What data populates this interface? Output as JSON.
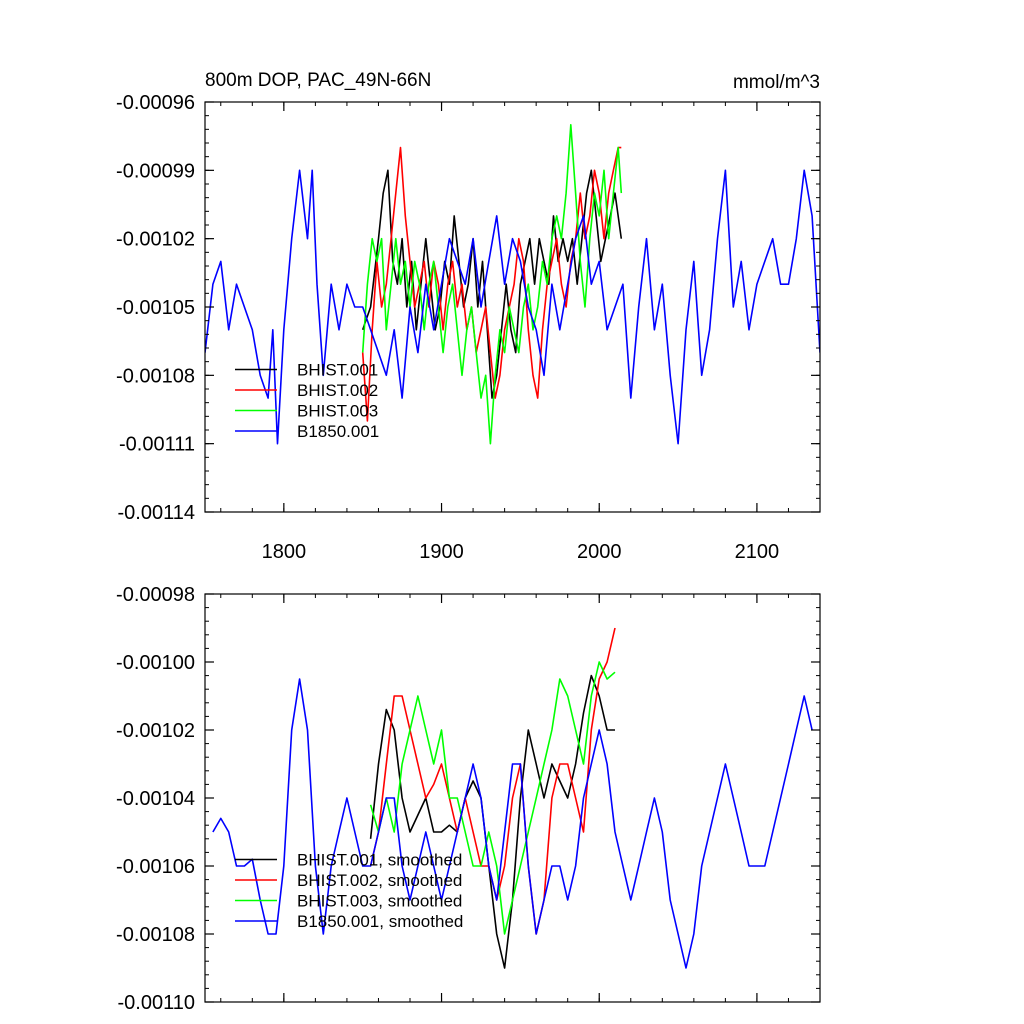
{
  "chart_data": [
    {
      "type": "line",
      "title": "800m DOP, PAC_49N-66N",
      "units": "mmol/m^3",
      "xlabel": "",
      "ylabel": "",
      "xlim": [
        1750,
        2140
      ],
      "ylim": [
        -0.00114,
        -0.00096
      ],
      "x_ticks": [
        1800,
        1900,
        2000,
        2100
      ],
      "x_tick_labels": [
        "1800",
        "1900",
        "2000",
        "2100"
      ],
      "y_ticks": [
        -0.00096,
        -0.00099,
        -0.00102,
        -0.00105,
        -0.00108,
        -0.00111,
        -0.00114
      ],
      "y_tick_labels": [
        "-0.00096",
        "-0.00099",
        "-0.00102",
        "-0.00105",
        "-0.00108",
        "-0.00111",
        "-0.00114"
      ],
      "grid": false,
      "legend_position": "bottom-left",
      "series": [
        {
          "name": "BHIST.001",
          "color": "#000000",
          "x": [
            1850,
            1855,
            1860,
            1863,
            1866,
            1869,
            1872,
            1875,
            1878,
            1881,
            1884,
            1887,
            1890,
            1893,
            1896,
            1899,
            1902,
            1905,
            1908,
            1911,
            1914,
            1917,
            1920,
            1923,
            1926,
            1929,
            1932,
            1935,
            1938,
            1941,
            1944,
            1947,
            1950,
            1953,
            1956,
            1959,
            1962,
            1965,
            1968,
            1971,
            1974,
            1977,
            1980,
            1983,
            1986,
            1989,
            1992,
            1995,
            1998,
            2001,
            2004,
            2007,
            2010,
            2014
          ],
          "values": [
            -0.00106,
            -0.00105,
            -0.00102,
            -0.001,
            -0.00099,
            -0.00103,
            -0.00104,
            -0.00102,
            -0.00105,
            -0.00103,
            -0.00106,
            -0.00104,
            -0.00102,
            -0.00104,
            -0.00106,
            -0.00105,
            -0.00103,
            -0.00104,
            -0.00101,
            -0.00103,
            -0.00105,
            -0.00104,
            -0.00102,
            -0.00105,
            -0.00103,
            -0.00106,
            -0.00109,
            -0.00108,
            -0.00106,
            -0.00104,
            -0.00106,
            -0.00107,
            -0.00104,
            -0.00103,
            -0.00102,
            -0.00104,
            -0.00102,
            -0.00103,
            -0.00104,
            -0.00101,
            -0.00103,
            -0.00102,
            -0.00103,
            -0.00102,
            -0.00104,
            -0.00102,
            -0.001,
            -0.00099,
            -0.00101,
            -0.00103,
            -0.00102,
            -0.00101,
            -0.001,
            -0.00102
          ]
        },
        {
          "name": "BHIST.002",
          "color": "#ff0000",
          "x": [
            1850,
            1853,
            1856,
            1859,
            1862,
            1865,
            1868,
            1871,
            1874,
            1877,
            1880,
            1883,
            1886,
            1889,
            1892,
            1895,
            1898,
            1901,
            1904,
            1907,
            1910,
            1913,
            1916,
            1919,
            1922,
            1925,
            1928,
            1931,
            1934,
            1937,
            1940,
            1943,
            1946,
            1949,
            1952,
            1955,
            1958,
            1961,
            1964,
            1967,
            1970,
            1973,
            1976,
            1979,
            1982,
            1985,
            1988,
            1991,
            1994,
            1997,
            2000,
            2003,
            2006,
            2009,
            2012,
            2014
          ],
          "values": [
            -0.00107,
            -0.0011,
            -0.00106,
            -0.00103,
            -0.00105,
            -0.00104,
            -0.00102,
            -0.001,
            -0.00098,
            -0.00101,
            -0.00103,
            -0.00105,
            -0.00104,
            -0.00103,
            -0.00105,
            -0.00103,
            -0.00104,
            -0.00106,
            -0.00104,
            -0.00103,
            -0.00105,
            -0.00104,
            -0.00106,
            -0.00105,
            -0.00107,
            -0.00106,
            -0.00105,
            -0.00107,
            -0.00109,
            -0.00108,
            -0.00106,
            -0.00105,
            -0.00104,
            -0.00102,
            -0.00103,
            -0.00106,
            -0.00108,
            -0.00109,
            -0.00106,
            -0.00104,
            -0.00103,
            -0.00102,
            -0.00104,
            -0.00105,
            -0.00103,
            -0.00102,
            -0.001,
            -0.00102,
            -0.00101,
            -0.00099,
            -0.001,
            -0.00102,
            -0.001,
            -0.00099,
            -0.00098,
            -0.00098
          ]
        },
        {
          "name": "BHIST.003",
          "color": "#00ff00",
          "x": [
            1850,
            1853,
            1856,
            1859,
            1862,
            1865,
            1868,
            1871,
            1874,
            1877,
            1880,
            1883,
            1886,
            1889,
            1892,
            1895,
            1898,
            1901,
            1904,
            1907,
            1910,
            1913,
            1916,
            1919,
            1922,
            1925,
            1928,
            1931,
            1934,
            1937,
            1940,
            1943,
            1946,
            1949,
            1952,
            1955,
            1958,
            1961,
            1964,
            1967,
            1970,
            1973,
            1976,
            1979,
            1982,
            1985,
            1988,
            1991,
            1994,
            1997,
            2000,
            2003,
            2006,
            2009,
            2012,
            2014
          ],
          "values": [
            -0.00107,
            -0.00104,
            -0.00102,
            -0.00103,
            -0.00102,
            -0.00106,
            -0.00104,
            -0.00102,
            -0.00104,
            -0.00103,
            -0.00105,
            -0.00103,
            -0.00104,
            -0.00106,
            -0.00104,
            -0.00103,
            -0.00105,
            -0.00107,
            -0.00105,
            -0.00104,
            -0.00106,
            -0.00108,
            -0.00106,
            -0.00105,
            -0.00107,
            -0.00109,
            -0.00108,
            -0.00111,
            -0.00108,
            -0.00106,
            -0.00107,
            -0.00105,
            -0.00106,
            -0.00107,
            -0.00105,
            -0.00104,
            -0.00106,
            -0.00105,
            -0.00103,
            -0.00104,
            -0.00102,
            -0.00101,
            -0.00102,
            -0.001,
            -0.00097,
            -0.001,
            -0.00103,
            -0.00105,
            -0.00102,
            -0.001,
            -0.00101,
            -0.00099,
            -0.00102,
            -0.001,
            -0.00098,
            -0.001
          ]
        },
        {
          "name": "B1850.001",
          "color": "#0000ff",
          "x": [
            1750,
            1755,
            1760,
            1765,
            1770,
            1775,
            1780,
            1785,
            1790,
            1793,
            1796,
            1800,
            1805,
            1810,
            1815,
            1818,
            1821,
            1825,
            1830,
            1835,
            1840,
            1845,
            1850,
            1855,
            1860,
            1865,
            1870,
            1875,
            1880,
            1885,
            1890,
            1895,
            1900,
            1905,
            1910,
            1915,
            1920,
            1925,
            1930,
            1935,
            1940,
            1945,
            1950,
            1955,
            1960,
            1965,
            1970,
            1975,
            1980,
            1985,
            1990,
            1995,
            2000,
            2005,
            2010,
            2015,
            2020,
            2025,
            2030,
            2035,
            2040,
            2045,
            2050,
            2055,
            2060,
            2065,
            2070,
            2075,
            2080,
            2085,
            2090,
            2095,
            2100,
            2105,
            2110,
            2115,
            2120,
            2125,
            2130,
            2135,
            2140
          ],
          "values": [
            -0.00107,
            -0.00104,
            -0.00103,
            -0.00106,
            -0.00104,
            -0.00105,
            -0.00106,
            -0.00108,
            -0.00109,
            -0.00106,
            -0.00111,
            -0.00106,
            -0.00102,
            -0.00099,
            -0.00102,
            -0.00099,
            -0.00104,
            -0.00108,
            -0.00104,
            -0.00106,
            -0.00104,
            -0.00105,
            -0.00105,
            -0.00106,
            -0.00107,
            -0.00108,
            -0.00106,
            -0.00109,
            -0.00105,
            -0.00107,
            -0.00104,
            -0.00106,
            -0.00104,
            -0.00102,
            -0.00103,
            -0.00104,
            -0.00102,
            -0.00105,
            -0.00103,
            -0.00101,
            -0.00104,
            -0.00102,
            -0.00103,
            -0.00105,
            -0.00106,
            -0.00108,
            -0.00104,
            -0.00106,
            -0.00104,
            -0.00102,
            -0.00101,
            -0.00104,
            -0.00103,
            -0.00106,
            -0.00105,
            -0.00104,
            -0.00109,
            -0.00105,
            -0.00102,
            -0.00106,
            -0.00104,
            -0.00108,
            -0.00111,
            -0.00106,
            -0.00103,
            -0.00108,
            -0.00106,
            -0.00102,
            -0.00099,
            -0.00105,
            -0.00103,
            -0.00106,
            -0.00104,
            -0.00103,
            -0.00102,
            -0.00104,
            -0.00104,
            -0.00102,
            -0.00099,
            -0.00101,
            -0.00107
          ]
        }
      ]
    },
    {
      "type": "line",
      "title": "",
      "xlabel": "",
      "ylabel": "",
      "xlim": [
        1750,
        2140
      ],
      "ylim": [
        -0.0011,
        -0.00098
      ],
      "x_ticks": [
        1800,
        1900,
        2000,
        2100
      ],
      "x_tick_labels": [],
      "y_ticks": [
        -0.00098,
        -0.001,
        -0.00102,
        -0.00104,
        -0.00106,
        -0.00108,
        -0.0011
      ],
      "y_tick_labels": [
        "-0.00098",
        "-0.00100",
        "-0.00102",
        "-0.00104",
        "-0.00106",
        "-0.00108",
        "-0.00110"
      ],
      "grid": false,
      "legend_position": "bottom-left",
      "series": [
        {
          "name": "BHIST.001, smoothed",
          "color": "#000000",
          "x": [
            1855,
            1860,
            1865,
            1870,
            1875,
            1880,
            1885,
            1890,
            1895,
            1900,
            1905,
            1910,
            1915,
            1920,
            1925,
            1930,
            1935,
            1940,
            1945,
            1950,
            1955,
            1960,
            1965,
            1970,
            1975,
            1980,
            1985,
            1990,
            1995,
            2000,
            2005,
            2010
          ],
          "values": [
            -0.001052,
            -0.00103,
            -0.001014,
            -0.00102,
            -0.00104,
            -0.00105,
            -0.001045,
            -0.00104,
            -0.00105,
            -0.00105,
            -0.001048,
            -0.00105,
            -0.00104,
            -0.001035,
            -0.00104,
            -0.00106,
            -0.00108,
            -0.00109,
            -0.00107,
            -0.00104,
            -0.00102,
            -0.00103,
            -0.00104,
            -0.00103,
            -0.001035,
            -0.00104,
            -0.00103,
            -0.001015,
            -0.001004,
            -0.00101,
            -0.00102,
            -0.00102
          ]
        },
        {
          "name": "BHIST.002, smoothed",
          "color": "#ff0000",
          "x": [
            1855,
            1860,
            1865,
            1870,
            1875,
            1880,
            1885,
            1890,
            1895,
            1900,
            1905,
            1910,
            1915,
            1920,
            1925,
            1930,
            1935,
            1940,
            1945,
            1950,
            1955,
            1960,
            1965,
            1970,
            1975,
            1980,
            1985,
            1990,
            1995,
            2000,
            2005,
            2010
          ],
          "values": [
            -0.00106,
            -0.00105,
            -0.00103,
            -0.00101,
            -0.00101,
            -0.00102,
            -0.00103,
            -0.00104,
            -0.001036,
            -0.00103,
            -0.00104,
            -0.00105,
            -0.00104,
            -0.00105,
            -0.00106,
            -0.00106,
            -0.00107,
            -0.00106,
            -0.00104,
            -0.00103,
            -0.00106,
            -0.00108,
            -0.00107,
            -0.00104,
            -0.00103,
            -0.00103,
            -0.00104,
            -0.00105,
            -0.00102,
            -0.001005,
            -0.001,
            -0.00099
          ]
        },
        {
          "name": "BHIST.003, smoothed",
          "color": "#00ff00",
          "x": [
            1855,
            1860,
            1865,
            1870,
            1875,
            1880,
            1885,
            1890,
            1895,
            1900,
            1905,
            1910,
            1915,
            1920,
            1925,
            1930,
            1935,
            1940,
            1945,
            1950,
            1955,
            1960,
            1965,
            1970,
            1975,
            1980,
            1985,
            1990,
            1995,
            2000,
            2005,
            2010
          ],
          "values": [
            -0.001042,
            -0.00105,
            -0.00104,
            -0.00105,
            -0.00103,
            -0.00102,
            -0.00101,
            -0.00102,
            -0.00103,
            -0.00102,
            -0.00104,
            -0.00104,
            -0.00105,
            -0.00106,
            -0.00106,
            -0.00105,
            -0.00106,
            -0.00108,
            -0.00107,
            -0.00106,
            -0.00105,
            -0.00104,
            -0.00103,
            -0.00102,
            -0.001005,
            -0.00101,
            -0.00102,
            -0.00103,
            -0.00101,
            -0.001,
            -0.001005,
            -0.001003
          ]
        },
        {
          "name": "B1850.001, smoothed",
          "color": "#0000ff",
          "x": [
            1755,
            1760,
            1765,
            1770,
            1775,
            1780,
            1785,
            1790,
            1795,
            1800,
            1805,
            1810,
            1815,
            1820,
            1825,
            1830,
            1835,
            1840,
            1845,
            1850,
            1855,
            1860,
            1865,
            1870,
            1875,
            1880,
            1885,
            1890,
            1895,
            1900,
            1905,
            1910,
            1915,
            1920,
            1925,
            1930,
            1935,
            1940,
            1945,
            1950,
            1955,
            1960,
            1965,
            1970,
            1975,
            1980,
            1985,
            1990,
            1995,
            2000,
            2005,
            2010,
            2015,
            2020,
            2025,
            2030,
            2035,
            2040,
            2045,
            2050,
            2055,
            2060,
            2065,
            2070,
            2075,
            2080,
            2085,
            2090,
            2095,
            2100,
            2105,
            2110,
            2115,
            2120,
            2125,
            2130,
            2135
          ],
          "values": [
            -0.00105,
            -0.001046,
            -0.00105,
            -0.00106,
            -0.00106,
            -0.001058,
            -0.00107,
            -0.00108,
            -0.00108,
            -0.00106,
            -0.00102,
            -0.001005,
            -0.00102,
            -0.00106,
            -0.00108,
            -0.00106,
            -0.00105,
            -0.00104,
            -0.00105,
            -0.00106,
            -0.00106,
            -0.00105,
            -0.00104,
            -0.00104,
            -0.00106,
            -0.00107,
            -0.00106,
            -0.00105,
            -0.00106,
            -0.00107,
            -0.00106,
            -0.00105,
            -0.00104,
            -0.00103,
            -0.00104,
            -0.00106,
            -0.00107,
            -0.00105,
            -0.00103,
            -0.00103,
            -0.00106,
            -0.00108,
            -0.00107,
            -0.00106,
            -0.00106,
            -0.00107,
            -0.00106,
            -0.00104,
            -0.00103,
            -0.00102,
            -0.00103,
            -0.00105,
            -0.00106,
            -0.00107,
            -0.00106,
            -0.00105,
            -0.00104,
            -0.00105,
            -0.00107,
            -0.00108,
            -0.00109,
            -0.00108,
            -0.00106,
            -0.00105,
            -0.00104,
            -0.00103,
            -0.00104,
            -0.00105,
            -0.00106,
            -0.00106,
            -0.00106,
            -0.00105,
            -0.00104,
            -0.00103,
            -0.00102,
            -0.00101,
            -0.00102
          ]
        }
      ]
    }
  ]
}
